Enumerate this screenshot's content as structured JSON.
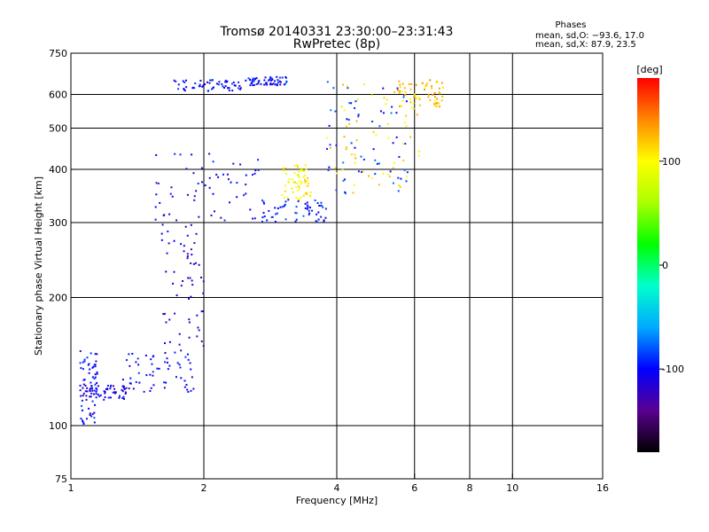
{
  "chart_data": {
    "type": "scatter",
    "title": "Tromsø 20140331 23:30:00–23:31:43",
    "subtitle": "RwPretec (8p)",
    "xlabel": "Frequency [MHz]",
    "ylabel": "Stationary phase Virtual Height [km]",
    "x_scale": "log",
    "y_scale": "log",
    "xlim": [
      1,
      16
    ],
    "ylim": [
      75,
      750
    ],
    "x_ticks": [
      1,
      2,
      4,
      6,
      8,
      10,
      16
    ],
    "x_tick_labels": [
      "1",
      "2",
      "4",
      "6",
      "8",
      "10",
      "16"
    ],
    "x_gridlines": [
      2,
      4,
      6,
      8,
      10
    ],
    "y_ticks": [
      75,
      100,
      200,
      300,
      400,
      500,
      600,
      750
    ],
    "y_tick_labels": [
      "75",
      "100",
      "200",
      "300",
      "400",
      "500",
      "600",
      "750"
    ],
    "y_gridlines": [
      100,
      200,
      300,
      400,
      500,
      600
    ],
    "grid": true,
    "color_encoding": "phase_deg",
    "stats": {
      "heading": "Phases",
      "line_o": "mean, sd,O: −93.6, 17.0",
      "line_x": "mean, sd,X:  87.9, 23.5"
    },
    "colorbar": {
      "label": "[deg]",
      "range": [
        -180,
        180
      ],
      "ticks": [
        100,
        0,
        -100
      ],
      "tick_labels": [
        "100",
        "0",
        "-100"
      ],
      "colors": [
        "#000000",
        "#5a0090",
        "#0000ff",
        "#00aaff",
        "#00ffcc",
        "#00ff00",
        "#aaff00",
        "#ffff00",
        "#ff8800",
        "#ff0000"
      ]
    },
    "traces": [
      {
        "x_range": [
          1.05,
          1.35
        ],
        "y_range": [
          115,
          125
        ],
        "phase": -110
      },
      {
        "x_range": [
          1.3,
          1.9
        ],
        "y_range": [
          120,
          150
        ],
        "phase": -105
      },
      {
        "x_range": [
          1.05,
          1.15
        ],
        "y_range": [
          100,
          150
        ],
        "phase": -100
      },
      {
        "x_range": [
          1.6,
          2.0
        ],
        "y_range": [
          150,
          300
        ],
        "phase": -115
      },
      {
        "x_range": [
          1.55,
          2.7
        ],
        "y_range": [
          300,
          440
        ],
        "phase": -105
      },
      {
        "x_range": [
          2.7,
          3.8
        ],
        "y_range": [
          300,
          340
        ],
        "phase": -95
      },
      {
        "x_range": [
          3.0,
          3.5
        ],
        "y_range": [
          340,
          410
        ],
        "phase": 100
      },
      {
        "x_range": [
          3.8,
          5.8
        ],
        "y_range": [
          350,
          650
        ],
        "phase": -90
      },
      {
        "x_range": [
          3.8,
          6.2
        ],
        "y_range": [
          350,
          650
        ],
        "phase": 110
      },
      {
        "x_range": [
          5.4,
          7.0
        ],
        "y_range": [
          560,
          650
        ],
        "phase": 120
      },
      {
        "x_range": [
          1.7,
          2.5
        ],
        "y_range": [
          610,
          650
        ],
        "phase": -100
      },
      {
        "x_range": [
          2.5,
          3.1
        ],
        "y_range": [
          630,
          660
        ],
        "phase": -100
      }
    ]
  }
}
